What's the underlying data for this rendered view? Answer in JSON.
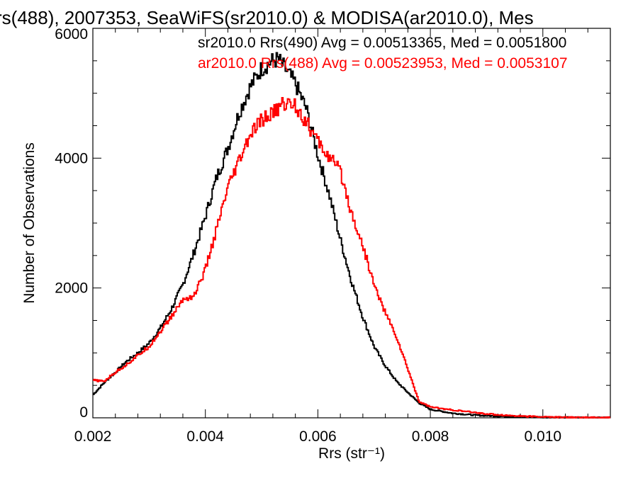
{
  "chart_data": {
    "type": "line",
    "title": "rs(488), 2007353, SeaWiFS(sr2010.0) & MODISA(ar2010.0), Mes",
    "xlabel": "Rrs (str⁻¹)",
    "ylabel": "Number of Observations",
    "xlim": [
      0.002,
      0.0112
    ],
    "ylim": [
      0,
      6000
    ],
    "x_ticks": [
      "0.002",
      "0.004",
      "0.006",
      "0.008",
      "0.010"
    ],
    "x_tick_values": [
      0.002,
      0.004,
      0.006,
      0.008,
      0.01
    ],
    "y_ticks": [
      "0",
      "2000",
      "4000",
      "6000"
    ],
    "y_tick_values": [
      0,
      2000,
      4000,
      6000
    ],
    "grid": false,
    "legend_placement": "top-right",
    "series": [
      {
        "name": "sr2010.0 Rrs(490) Avg = 0.00513365, Med = 0.0051800",
        "color": "#000000",
        "x": [
          0.002,
          0.0022,
          0.0024,
          0.0026,
          0.0028,
          0.003,
          0.0032,
          0.0034,
          0.0036,
          0.0038,
          0.004,
          0.0042,
          0.0044,
          0.0046,
          0.0048,
          0.005,
          0.0052,
          0.0053,
          0.0054,
          0.0056,
          0.0058,
          0.006,
          0.0062,
          0.0064,
          0.0066,
          0.0068,
          0.007,
          0.0072,
          0.0074,
          0.0076,
          0.0078,
          0.008,
          0.0084,
          0.0088,
          0.0092,
          0.0096,
          0.01,
          0.0104,
          0.0108,
          0.0112
        ],
        "y": [
          350,
          540,
          700,
          870,
          1000,
          1150,
          1380,
          1680,
          2050,
          2550,
          3100,
          3700,
          4150,
          4700,
          5100,
          5380,
          5500,
          5520,
          5400,
          5150,
          4750,
          4050,
          3450,
          2750,
          2100,
          1550,
          1100,
          800,
          560,
          390,
          230,
          130,
          70,
          40,
          25,
          15,
          10,
          5,
          3,
          2
        ]
      },
      {
        "name": "ar2010.0 Rrs(488) Avg = 0.00523953, Med = 0.0053107",
        "color": "#ff0000",
        "x": [
          0.002,
          0.0022,
          0.0024,
          0.0026,
          0.0028,
          0.003,
          0.0032,
          0.0034,
          0.0036,
          0.0038,
          0.004,
          0.0042,
          0.0044,
          0.0046,
          0.0048,
          0.005,
          0.0052,
          0.0054,
          0.0056,
          0.0058,
          0.006,
          0.0062,
          0.0064,
          0.0066,
          0.0068,
          0.007,
          0.0072,
          0.0074,
          0.0076,
          0.0078,
          0.008,
          0.0082,
          0.0086,
          0.009,
          0.0094,
          0.0098,
          0.0102,
          0.0106,
          0.011,
          0.0112
        ],
        "y": [
          580,
          560,
          700,
          820,
          960,
          1100,
          1330,
          1560,
          1820,
          1880,
          2280,
          2900,
          3530,
          3950,
          4350,
          4580,
          4690,
          4850,
          4820,
          4550,
          4250,
          4020,
          3800,
          3150,
          2650,
          2050,
          1620,
          1240,
          750,
          250,
          170,
          140,
          100,
          60,
          35,
          20,
          10,
          6,
          3,
          2
        ]
      }
    ]
  }
}
